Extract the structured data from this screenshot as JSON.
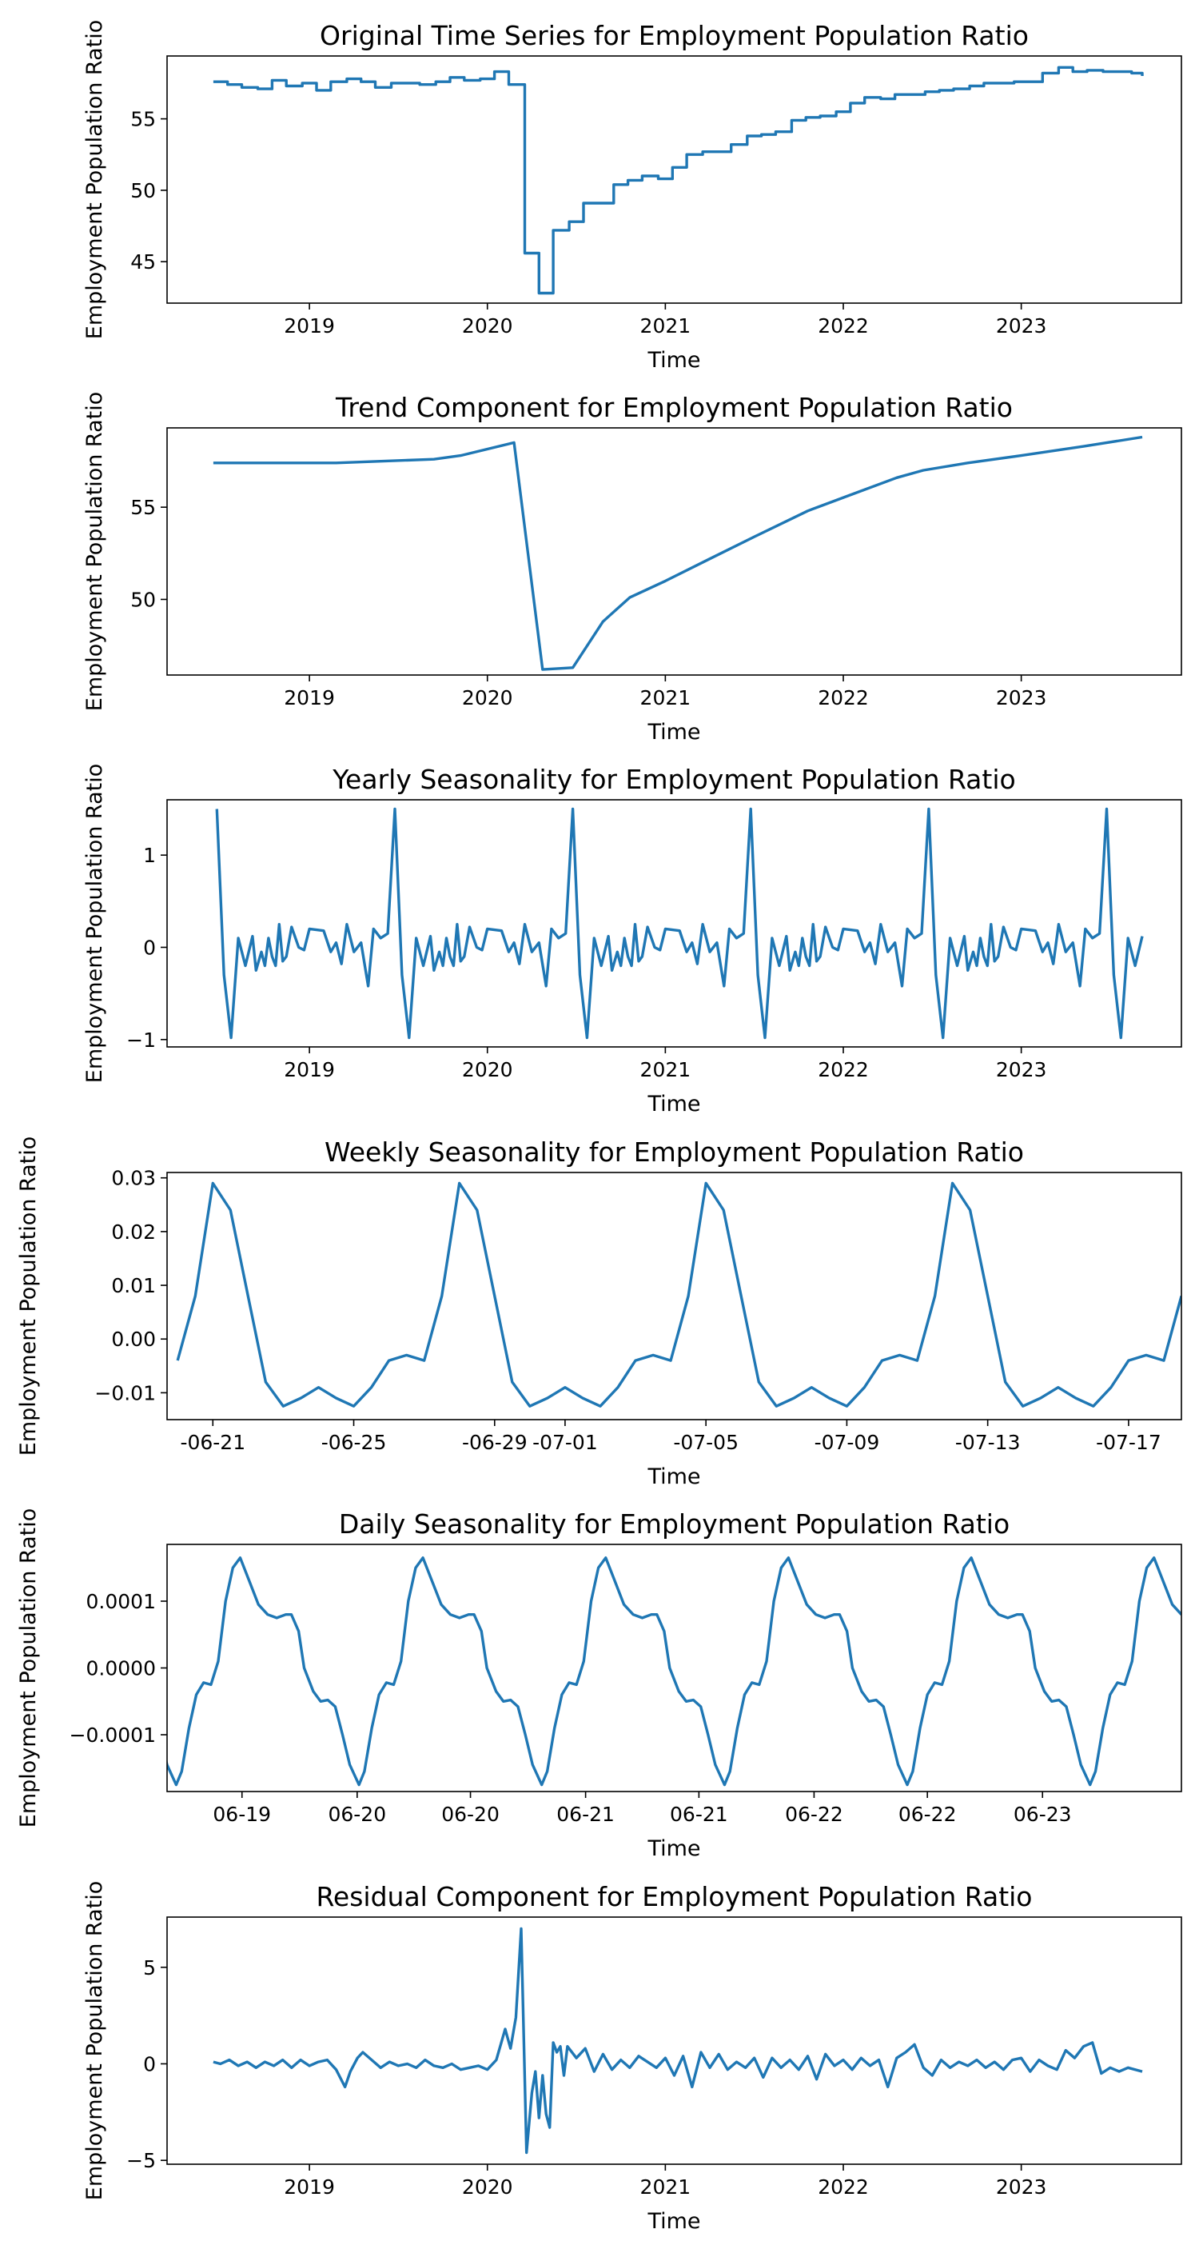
{
  "chart_data": [
    {
      "type": "line",
      "step": true,
      "title": "Original Time Series for Employment Population Ratio",
      "xlabel": "Time",
      "ylabel": "Employment Population Ratio",
      "xlim": [
        2018.2,
        2023.9
      ],
      "ylim": [
        42.1,
        59.4
      ],
      "xticks": [
        2019,
        2020,
        2021,
        2022,
        2023
      ],
      "xtick_labels": [
        "2019",
        "2020",
        "2021",
        "2022",
        "2023"
      ],
      "yticks": [
        45,
        50,
        55
      ],
      "ytick_labels": [
        "45",
        "50",
        "55"
      ],
      "x": [
        2018.46,
        2018.54,
        2018.62,
        2018.71,
        2018.79,
        2018.87,
        2018.96,
        2019.04,
        2019.12,
        2019.21,
        2019.29,
        2019.37,
        2019.46,
        2019.54,
        2019.62,
        2019.71,
        2019.79,
        2019.87,
        2019.96,
        2020.04,
        2020.12,
        2020.21,
        2020.29,
        2020.37,
        2020.46,
        2020.54,
        2020.62,
        2020.71,
        2020.79,
        2020.87,
        2020.96,
        2021.04,
        2021.12,
        2021.21,
        2021.29,
        2021.37,
        2021.46,
        2021.54,
        2021.62,
        2021.71,
        2021.79,
        2021.87,
        2021.96,
        2022.04,
        2022.12,
        2022.21,
        2022.29,
        2022.37,
        2022.46,
        2022.54,
        2022.62,
        2022.71,
        2022.79,
        2022.87,
        2022.96,
        2023.04,
        2023.12,
        2023.21,
        2023.29,
        2023.37,
        2023.46,
        2023.54,
        2023.62,
        2023.68
      ],
      "y": [
        57.6,
        57.4,
        57.2,
        57.1,
        57.7,
        57.3,
        57.5,
        57.0,
        57.6,
        57.8,
        57.6,
        57.2,
        57.5,
        57.5,
        57.4,
        57.6,
        57.9,
        57.7,
        57.8,
        58.3,
        57.4,
        45.6,
        42.8,
        47.2,
        47.8,
        49.1,
        49.1,
        50.4,
        50.7,
        51.0,
        50.8,
        51.6,
        52.5,
        52.7,
        52.7,
        53.2,
        53.8,
        53.9,
        54.1,
        54.9,
        55.1,
        55.2,
        55.5,
        56.1,
        56.5,
        56.4,
        56.7,
        56.7,
        56.9,
        57.0,
        57.1,
        57.3,
        57.5,
        57.5,
        57.6,
        57.6,
        58.2,
        58.6,
        58.3,
        58.4,
        58.3,
        58.3,
        58.2,
        58.0
      ]
    },
    {
      "type": "line",
      "title": "Trend Component for Employment Population Ratio",
      "xlabel": "Time",
      "ylabel": "Employment Population Ratio",
      "xlim": [
        2018.2,
        2023.9
      ],
      "ylim": [
        45.9,
        59.3
      ],
      "xticks": [
        2019,
        2020,
        2021,
        2022,
        2023
      ],
      "xtick_labels": [
        "2019",
        "2020",
        "2021",
        "2022",
        "2023"
      ],
      "yticks": [
        50,
        55
      ],
      "ytick_labels": [
        "50",
        "55"
      ],
      "x": [
        2018.46,
        2019.15,
        2019.7,
        2019.85,
        2020.15,
        2020.31,
        2020.48,
        2020.65,
        2020.8,
        2021.0,
        2021.25,
        2021.5,
        2021.8,
        2022.05,
        2022.3,
        2022.45,
        2022.7,
        2023.0,
        2023.35,
        2023.68
      ],
      "y": [
        57.4,
        57.4,
        57.6,
        57.8,
        58.5,
        46.2,
        46.3,
        48.8,
        50.1,
        51.0,
        52.2,
        53.4,
        54.8,
        55.7,
        56.6,
        57.0,
        57.4,
        57.8,
        58.3,
        58.8
      ]
    },
    {
      "type": "line",
      "title": "Yearly Seasonality for Employment Population Ratio",
      "xlabel": "Time",
      "ylabel": "Employment Population Ratio",
      "xlim": [
        2018.2,
        2023.9
      ],
      "ylim": [
        -1.08,
        1.6
      ],
      "xticks": [
        2019,
        2020,
        2021,
        2022,
        2023
      ],
      "xtick_labels": [
        "2019",
        "2020",
        "2021",
        "2022",
        "2023"
      ],
      "yticks": [
        -1,
        0,
        1
      ],
      "ytick_labels": [
        "−1",
        "0",
        "1"
      ],
      "period_x": 1.0,
      "cycle_offsets": [
        0.0,
        0.08,
        0.12,
        0.15,
        0.18,
        0.21,
        0.25,
        0.29,
        0.33,
        0.36,
        0.4,
        0.44,
        0.48,
        0.52,
        0.56,
        0.6,
        0.64,
        0.68,
        0.7,
        0.73,
        0.75,
        0.77,
        0.79,
        0.81,
        0.83,
        0.85,
        0.87,
        0.9,
        0.94,
        0.97
      ],
      "cycle_values": [
        0.2,
        0.18,
        -0.05,
        0.05,
        -0.18,
        0.25,
        -0.05,
        0.05,
        -0.42,
        0.2,
        0.1,
        0.15,
        1.5,
        -0.3,
        -0.98,
        0.1,
        -0.2,
        0.12,
        -0.25,
        -0.05,
        -0.2,
        0.1,
        -0.1,
        -0.2,
        0.25,
        -0.15,
        -0.1,
        0.22,
        0.0,
        -0.03
      ],
      "cycle_start": 2018.46,
      "cycle_end": 2023.68
    },
    {
      "type": "line",
      "title": "Weekly Seasonality for Employment Population Ratio",
      "xlabel": "Time",
      "ylabel": "Employment Population Ratio",
      "xlim": [
        19.7,
        48.5
      ],
      "ylim": [
        -0.015,
        0.031
      ],
      "xticks": [
        21,
        25,
        29,
        31,
        35,
        39,
        43,
        47
      ],
      "xtick_labels": [
        "-06-21",
        "-06-25",
        "-06-29",
        "-07-01",
        "-07-05",
        "-07-09",
        "-07-13",
        "-07-17"
      ],
      "yticks": [
        -0.01,
        0.0,
        0.01,
        0.02,
        0.03
      ],
      "ytick_labels": [
        "−0.01",
        "0.00",
        "0.01",
        "0.02",
        "0.03"
      ],
      "period_x": 7.0,
      "cycle_offsets": [
        0.0,
        0.5,
        1.0,
        1.5,
        2.0,
        2.5,
        3.0,
        3.5,
        4.0,
        4.5,
        5.0,
        5.5,
        6.0,
        6.5
      ],
      "cycle_values": [
        0.029,
        0.024,
        0.008,
        -0.008,
        -0.0125,
        -0.011,
        -0.009,
        -0.011,
        -0.0125,
        -0.009,
        -0.004,
        -0.003,
        -0.004,
        0.008
      ],
      "cycle_start": 19.6,
      "cycle_end": 48.5
    },
    {
      "type": "line",
      "title": "Daily Seasonality for Employment Population Ratio",
      "xlabel": "Time",
      "ylabel": "Employment Population Ratio",
      "xlim": [
        18.4,
        23.95
      ],
      "ylim": [
        -0.000185,
        0.000185
      ],
      "xticks": [
        18.81,
        19.44,
        20.06,
        20.69,
        21.31,
        21.94,
        22.56,
        23.19
      ],
      "xtick_labels": [
        "06-19",
        "06-20",
        "06-20",
        "06-21",
        "06-21",
        "06-22",
        "06-22",
        "06-23"
      ],
      "yticks": [
        -0.0001,
        0.0,
        0.0001
      ],
      "ytick_labels": [
        "−0.0001",
        "0.0000",
        "0.0001"
      ],
      "period_x": 1.0,
      "cycle_offsets": [
        0.0,
        0.05,
        0.08,
        0.12,
        0.15,
        0.2,
        0.24,
        0.28,
        0.32,
        0.36,
        0.4,
        0.45,
        0.48,
        0.52,
        0.56,
        0.6,
        0.64,
        0.68,
        0.72,
        0.76,
        0.8,
        0.85,
        0.9,
        0.95
      ],
      "cycle_values": [
        7.5e-05,
        8e-05,
        8e-05,
        5.5e-05,
        0.0,
        -3.5e-05,
        -5e-05,
        -4.8e-05,
        -5.8e-05,
        -0.0001,
        -0.000145,
        -0.000175,
        -0.000155,
        -9e-05,
        -4e-05,
        -2.2e-05,
        -2.5e-05,
        1e-05,
        0.0001,
        0.00015,
        0.000165,
        0.00013,
        9.5e-05,
        8e-05
      ],
      "cycle_start": 18.12,
      "cycle_end": 23.95
    },
    {
      "type": "line",
      "title": "Residual Component for Employment Population Ratio",
      "xlabel": "Time",
      "ylabel": "Employment Population Ratio",
      "xlim": [
        2018.2,
        2023.9
      ],
      "ylim": [
        -5.2,
        7.6
      ],
      "xticks": [
        2019,
        2020,
        2021,
        2022,
        2023
      ],
      "xtick_labels": [
        "2019",
        "2020",
        "2021",
        "2022",
        "2023"
      ],
      "yticks": [
        -5,
        0,
        5
      ],
      "ytick_labels": [
        "−5",
        "0",
        "5"
      ],
      "x": [
        2018.46,
        2018.5,
        2018.55,
        2018.6,
        2018.65,
        2018.7,
        2018.75,
        2018.8,
        2018.85,
        2018.9,
        2018.95,
        2019.0,
        2019.05,
        2019.1,
        2019.15,
        2019.2,
        2019.23,
        2019.27,
        2019.3,
        2019.35,
        2019.4,
        2019.45,
        2019.5,
        2019.55,
        2019.6,
        2019.65,
        2019.7,
        2019.75,
        2019.8,
        2019.85,
        2019.9,
        2019.95,
        2020.0,
        2020.05,
        2020.1,
        2020.13,
        2020.16,
        2020.19,
        2020.22,
        2020.25,
        2020.27,
        2020.29,
        2020.31,
        2020.33,
        2020.35,
        2020.37,
        2020.39,
        2020.41,
        2020.43,
        2020.45,
        2020.5,
        2020.55,
        2020.6,
        2020.65,
        2020.7,
        2020.75,
        2020.8,
        2020.85,
        2020.9,
        2020.95,
        2021.0,
        2021.05,
        2021.1,
        2021.15,
        2021.2,
        2021.25,
        2021.3,
        2021.35,
        2021.4,
        2021.45,
        2021.5,
        2021.55,
        2021.6,
        2021.65,
        2021.7,
        2021.75,
        2021.8,
        2021.85,
        2021.9,
        2021.95,
        2022.0,
        2022.05,
        2022.1,
        2022.15,
        2022.2,
        2022.25,
        2022.3,
        2022.35,
        2022.4,
        2022.45,
        2022.5,
        2022.55,
        2022.6,
        2022.65,
        2022.7,
        2022.75,
        2022.8,
        2022.85,
        2022.9,
        2022.95,
        2023.0,
        2023.05,
        2023.1,
        2023.15,
        2023.2,
        2023.25,
        2023.3,
        2023.35,
        2023.4,
        2023.45,
        2023.5,
        2023.55,
        2023.6,
        2023.68
      ],
      "y": [
        0.1,
        0.0,
        0.2,
        -0.1,
        0.1,
        -0.2,
        0.1,
        -0.1,
        0.2,
        -0.2,
        0.2,
        -0.1,
        0.1,
        0.2,
        -0.3,
        -1.2,
        -0.4,
        0.3,
        0.6,
        0.2,
        -0.2,
        0.1,
        -0.1,
        0.0,
        -0.2,
        0.2,
        -0.1,
        -0.2,
        0.0,
        -0.3,
        -0.2,
        -0.1,
        -0.3,
        0.2,
        1.8,
        0.8,
        2.4,
        7.0,
        -4.6,
        -1.5,
        -0.4,
        -2.8,
        -0.6,
        -2.6,
        -3.3,
        1.1,
        0.6,
        0.9,
        -0.6,
        0.9,
        0.3,
        0.8,
        -0.4,
        0.5,
        -0.3,
        0.2,
        -0.2,
        0.4,
        0.1,
        -0.2,
        0.3,
        -0.6,
        0.4,
        -1.2,
        0.6,
        -0.2,
        0.5,
        -0.3,
        0.1,
        -0.2,
        0.3,
        -0.7,
        0.3,
        -0.2,
        0.2,
        -0.3,
        0.4,
        -0.8,
        0.5,
        -0.1,
        0.2,
        -0.3,
        0.3,
        -0.1,
        0.2,
        -1.2,
        0.3,
        0.6,
        1.0,
        -0.2,
        -0.6,
        0.2,
        -0.2,
        0.1,
        -0.1,
        0.2,
        -0.2,
        0.1,
        -0.3,
        0.2,
        0.3,
        -0.4,
        0.2,
        -0.1,
        -0.3,
        0.7,
        0.3,
        0.9,
        1.1,
        -0.5,
        -0.2,
        -0.4,
        -0.2,
        -0.4
      ]
    }
  ]
}
